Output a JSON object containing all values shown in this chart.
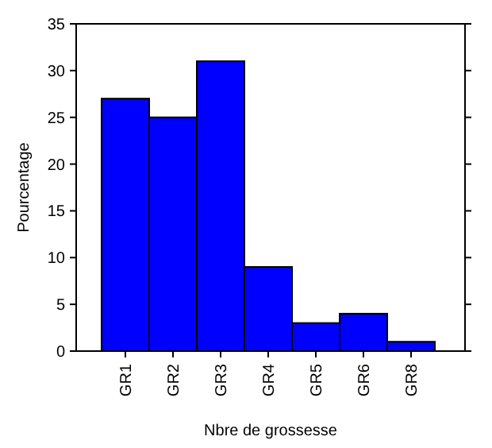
{
  "chart_data": {
    "type": "bar",
    "xlabel": "Nbre de grossesse",
    "ylabel": "Pourcentage",
    "categories": [
      "GR1",
      "GR2",
      "GR3",
      "GR4",
      "GR5",
      "GR6",
      "GR8"
    ],
    "values": [
      27,
      25,
      31,
      9,
      3,
      4,
      1
    ],
    "color": "#0000ff",
    "ylim": [
      0,
      35
    ],
    "yticks": [
      0,
      5,
      10,
      15,
      20,
      25,
      30,
      35
    ],
    "grid": false
  }
}
